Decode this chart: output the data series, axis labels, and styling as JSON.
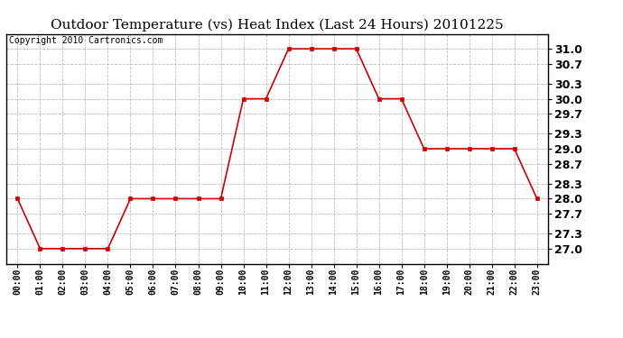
{
  "title": "Outdoor Temperature (vs) Heat Index (Last 24 Hours) 20101225",
  "copyright_text": "Copyright 2010 Cartronics.com",
  "x_labels": [
    "00:00",
    "01:00",
    "02:00",
    "03:00",
    "04:00",
    "05:00",
    "06:00",
    "07:00",
    "08:00",
    "09:00",
    "10:00",
    "11:00",
    "12:00",
    "13:00",
    "14:00",
    "15:00",
    "16:00",
    "17:00",
    "18:00",
    "19:00",
    "20:00",
    "21:00",
    "22:00",
    "23:00"
  ],
  "y_values": [
    28.0,
    27.0,
    27.0,
    27.0,
    27.0,
    28.0,
    28.0,
    28.0,
    28.0,
    28.0,
    30.0,
    30.0,
    31.0,
    31.0,
    31.0,
    31.0,
    30.0,
    30.0,
    29.0,
    29.0,
    29.0,
    29.0,
    29.0,
    28.0
  ],
  "y_ticks": [
    27.0,
    27.3,
    27.7,
    28.0,
    28.3,
    28.7,
    29.0,
    29.3,
    29.7,
    30.0,
    30.3,
    30.7,
    31.0
  ],
  "y_tick_labels": [
    "27.0",
    "27.3",
    "27.7",
    "28.0",
    "28.3",
    "28.7",
    "29.0",
    "29.3",
    "29.7",
    "30.0",
    "30.3",
    "30.7",
    "31.0"
  ],
  "ylim": [
    26.7,
    31.3
  ],
  "line_color": "#cc0000",
  "marker_color": "#cc0000",
  "background_color": "#ffffff",
  "grid_color": "#bbbbbb",
  "title_fontsize": 11,
  "copyright_fontsize": 7,
  "tick_fontsize": 9,
  "xtick_fontsize": 7
}
